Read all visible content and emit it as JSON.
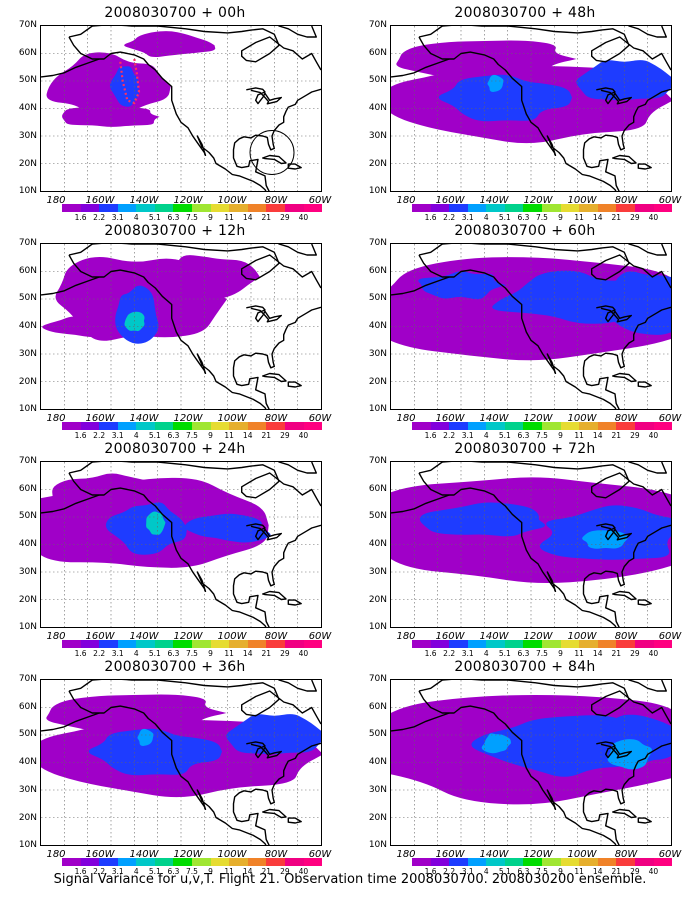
{
  "footer": "Signal Variance for u,v,T. Flight 21. Observation time 2008030700. 2008030200 ensemble.",
  "y_ticks": [
    "70N",
    "60N",
    "50N",
    "40N",
    "30N",
    "20N",
    "10N"
  ],
  "x_ticks": [
    "180",
    "160W",
    "140W",
    "120W",
    "100W",
    "80W",
    "60W"
  ],
  "colorbar": {
    "labels": [
      "1.6",
      "2.2",
      "3.1",
      "4",
      "5.1",
      "6.3",
      "7.5",
      "9",
      "11",
      "14",
      "21",
      "29",
      "40"
    ],
    "colors": [
      "#a000c8",
      "#8200dc",
      "#1e3cff",
      "#00a0ff",
      "#00c8c8",
      "#00d28c",
      "#00dc00",
      "#a0e632",
      "#e6dc32",
      "#e6af2d",
      "#f08228",
      "#fa3c3c",
      "#f00082",
      "#ff0080"
    ]
  },
  "panels": [
    {
      "title": "2008030700 + 00h",
      "level": 0
    },
    {
      "title": "2008030700 + 48h",
      "level": 3
    },
    {
      "title": "2008030700 + 12h",
      "level": 1
    },
    {
      "title": "2008030700 + 60h",
      "level": 4
    },
    {
      "title": "2008030700 + 24h",
      "level": 2
    },
    {
      "title": "2008030700 + 72h",
      "level": 5
    },
    {
      "title": "2008030700 + 36h",
      "level": 3
    },
    {
      "title": "2008030700 + 84h",
      "level": 6
    }
  ]
}
